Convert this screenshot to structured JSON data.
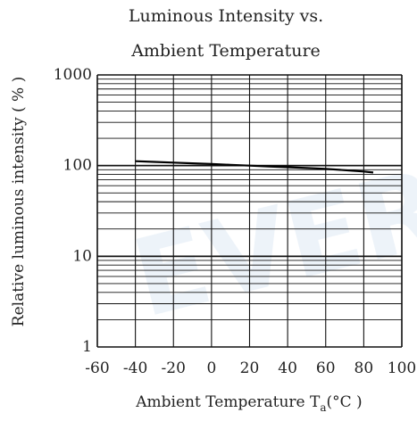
{
  "chart_data": {
    "type": "line",
    "title_lines": [
      "Luminous Intensity vs.",
      "Ambient Temperature"
    ],
    "xlabel": "Ambient Temperature T",
    "xlabel_sub": "a",
    "xlabel_unit": "(°C )",
    "ylabel": "Relative luminous intensity ( % )",
    "xlim": [
      -60,
      100
    ],
    "ylim": [
      1,
      1000
    ],
    "yscale": "log",
    "xticks": [
      "-60",
      "-40",
      "-20",
      "0",
      "20",
      "40",
      "60",
      "80",
      "100"
    ],
    "yticks": [
      "1",
      "10",
      "100",
      "1000"
    ],
    "grid": true,
    "series": [
      {
        "x": [
          -40,
          -30,
          -20,
          -10,
          0,
          10,
          20,
          30,
          40,
          50,
          60,
          70,
          80,
          85
        ],
        "y": [
          112,
          110,
          108,
          106,
          104,
          102,
          100,
          98,
          96,
          94,
          92,
          89,
          86,
          84
        ]
      }
    ],
    "line_color": "#000000"
  },
  "watermark": "EVER"
}
